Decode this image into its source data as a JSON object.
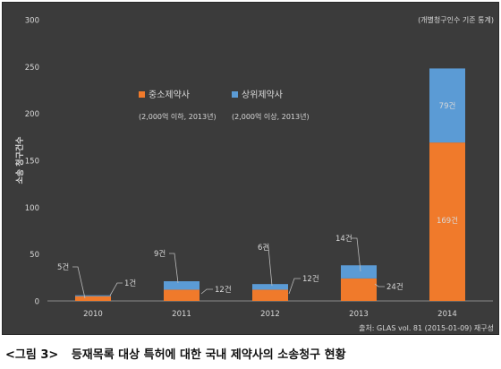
{
  "colors": {
    "sme": "#f07a2b",
    "top": "#5b9bd5",
    "background": "#3b3b3b",
    "text": "#d8d8d8",
    "grid": "#4f4f4f"
  },
  "chart_data": {
    "type": "bar",
    "stacked": true,
    "categories": [
      "2010",
      "2011",
      "2012",
      "2013",
      "2014"
    ],
    "series": [
      {
        "name": "중소제약사",
        "note": "(2,000억 이하, 2013년)",
        "values": [
          5,
          12,
          12,
          24,
          169
        ]
      },
      {
        "name": "상위제약사",
        "note": "(2,000억 이상, 2013년)",
        "values": [
          1,
          9,
          6,
          14,
          79
        ]
      }
    ],
    "data_labels": [
      {
        "sme": "5건",
        "top": "1건"
      },
      {
        "sme": "12건",
        "top": "9건"
      },
      {
        "sme": "12건",
        "top": "6건"
      },
      {
        "sme": "24건",
        "top": "14건"
      },
      {
        "sme": "169건",
        "top": "79건"
      }
    ],
    "ylabel": "소송 청구건수",
    "ylim": [
      0,
      300
    ],
    "yticks": [
      0,
      50,
      100,
      150,
      200,
      250,
      300
    ],
    "grid": false,
    "legend": "upper-left",
    "unit_note": "(개별청구인수 기준 통계)",
    "source": "출처: GLAS vol. 81 (2015-01-09) 재구성"
  },
  "caption": {
    "number": "<그림 3>",
    "title": "등재목록 대상 특허에 대한 국내 제약사의 소송청구 현황"
  }
}
